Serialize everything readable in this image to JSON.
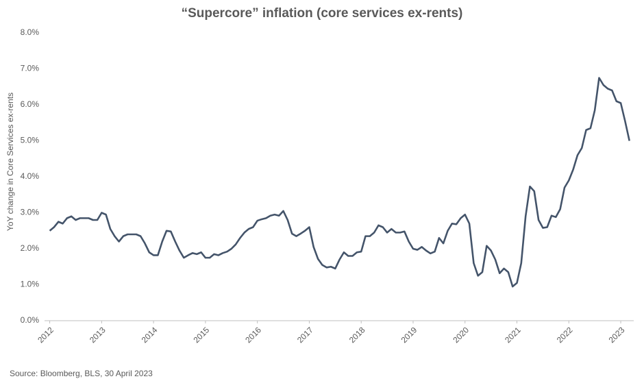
{
  "chart_data": {
    "type": "line",
    "title": "“Supercore” inflation (core services ex-rents)",
    "y_label": "YoY change in Core Services ex-rents",
    "source": "Source: Bloomberg, BLS, 30 April 2023",
    "color": "#44546a",
    "x": [
      2012.0,
      2012.083,
      2012.167,
      2012.25,
      2012.333,
      2012.417,
      2012.5,
      2012.583,
      2012.667,
      2012.75,
      2012.833,
      2012.917,
      2013.0,
      2013.083,
      2013.167,
      2013.25,
      2013.333,
      2013.417,
      2013.5,
      2013.583,
      2013.667,
      2013.75,
      2013.833,
      2013.917,
      2014.0,
      2014.083,
      2014.167,
      2014.25,
      2014.333,
      2014.417,
      2014.5,
      2014.583,
      2014.667,
      2014.75,
      2014.833,
      2014.917,
      2015.0,
      2015.083,
      2015.167,
      2015.25,
      2015.333,
      2015.417,
      2015.5,
      2015.583,
      2015.667,
      2015.75,
      2015.833,
      2015.917,
      2016.0,
      2016.083,
      2016.167,
      2016.25,
      2016.333,
      2016.417,
      2016.5,
      2016.583,
      2016.667,
      2016.75,
      2016.833,
      2016.917,
      2017.0,
      2017.083,
      2017.167,
      2017.25,
      2017.333,
      2017.417,
      2017.5,
      2017.583,
      2017.667,
      2017.75,
      2017.833,
      2017.917,
      2018.0,
      2018.083,
      2018.167,
      2018.25,
      2018.333,
      2018.417,
      2018.5,
      2018.583,
      2018.667,
      2018.75,
      2018.833,
      2018.917,
      2019.0,
      2019.083,
      2019.167,
      2019.25,
      2019.333,
      2019.417,
      2019.5,
      2019.583,
      2019.667,
      2019.75,
      2019.833,
      2019.917,
      2020.0,
      2020.083,
      2020.167,
      2020.25,
      2020.333,
      2020.417,
      2020.5,
      2020.583,
      2020.667,
      2020.75,
      2020.833,
      2020.917,
      2021.0,
      2021.083,
      2021.167,
      2021.25,
      2021.333,
      2021.417,
      2021.5,
      2021.583,
      2021.667,
      2021.75,
      2021.833,
      2021.917,
      2022.0,
      2022.083,
      2022.167,
      2022.25,
      2022.333,
      2022.417,
      2022.5,
      2022.583,
      2022.667,
      2022.75,
      2022.833,
      2022.917,
      2023.0,
      2023.083,
      2023.167
    ],
    "values": [
      2.5,
      2.6,
      2.75,
      2.7,
      2.85,
      2.9,
      2.8,
      2.85,
      2.85,
      2.85,
      2.8,
      2.8,
      3.0,
      2.95,
      2.55,
      2.35,
      2.2,
      2.35,
      2.4,
      2.4,
      2.4,
      2.35,
      2.15,
      1.9,
      1.82,
      1.82,
      2.2,
      2.5,
      2.48,
      2.2,
      1.95,
      1.75,
      1.82,
      1.88,
      1.85,
      1.9,
      1.75,
      1.75,
      1.85,
      1.82,
      1.88,
      1.92,
      2.0,
      2.12,
      2.3,
      2.45,
      2.55,
      2.6,
      2.78,
      2.82,
      2.85,
      2.92,
      2.95,
      2.92,
      3.05,
      2.8,
      2.42,
      2.35,
      2.42,
      2.5,
      2.6,
      2.05,
      1.72,
      1.55,
      1.48,
      1.5,
      1.45,
      1.7,
      1.9,
      1.8,
      1.8,
      1.9,
      1.92,
      2.35,
      2.35,
      2.45,
      2.65,
      2.6,
      2.45,
      2.55,
      2.45,
      2.45,
      2.48,
      2.2,
      2.0,
      1.97,
      2.05,
      1.95,
      1.87,
      1.92,
      2.3,
      2.15,
      2.5,
      2.7,
      2.68,
      2.85,
      2.95,
      2.7,
      1.6,
      1.25,
      1.35,
      2.08,
      1.95,
      1.7,
      1.32,
      1.45,
      1.35,
      0.95,
      1.05,
      1.6,
      2.9,
      3.73,
      3.6,
      2.8,
      2.58,
      2.6,
      2.92,
      2.88,
      3.1,
      3.7,
      3.9,
      4.2,
      4.6,
      4.8,
      5.3,
      5.35,
      5.85,
      6.75,
      6.55,
      6.45,
      6.4,
      6.1,
      6.05,
      5.55,
      5.0
    ],
    "xlim": [
      2011.9,
      2023.25
    ],
    "xticks": [
      2012,
      2013,
      2014,
      2015,
      2016,
      2017,
      2018,
      2019,
      2020,
      2021,
      2022,
      2023
    ],
    "ylim": [
      0,
      8
    ],
    "yticks": [
      {
        "value": 0,
        "label": "0.0%"
      },
      {
        "value": 1,
        "label": "1.0%"
      },
      {
        "value": 2,
        "label": "2.0%"
      },
      {
        "value": 3,
        "label": "3.0%"
      },
      {
        "value": 4,
        "label": "4.0%"
      },
      {
        "value": 5,
        "label": "5.0%"
      },
      {
        "value": 6,
        "label": "6.0%"
      },
      {
        "value": 7,
        "label": "7.0%"
      },
      {
        "value": 8,
        "label": "8.0%"
      }
    ],
    "grid": false
  }
}
